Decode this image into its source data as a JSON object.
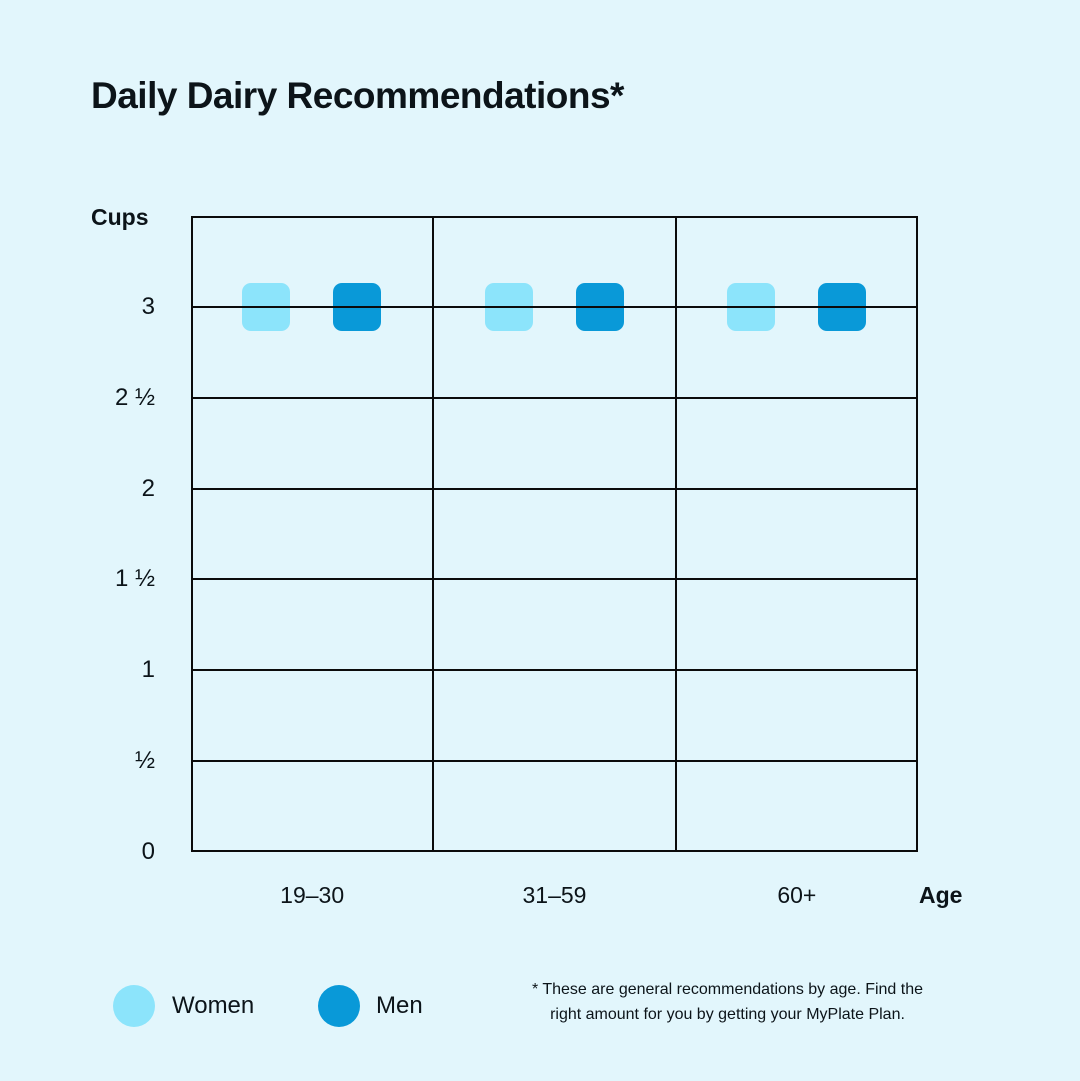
{
  "title": "Daily Dairy Recommendations*",
  "axis": {
    "ylabel": "Cups",
    "xlabel": "Age"
  },
  "chart_data": {
    "type": "scatter",
    "marker_shape": "rounded-square",
    "categories": [
      "19–30",
      "31–59",
      "60+"
    ],
    "series": [
      {
        "name": "Women",
        "values": [
          3,
          3,
          3
        ],
        "color": "#8ce4fb"
      },
      {
        "name": "Men",
        "values": [
          3,
          3,
          3
        ],
        "color": "#0999d8"
      }
    ],
    "title": "Daily Dairy Recommendations*",
    "xlabel": "Age",
    "ylabel": "Cups",
    "ylim": [
      0,
      3.5
    ],
    "ytick_values": [
      0,
      0.5,
      1,
      1.5,
      2,
      2.5,
      3
    ],
    "ytick_labels": [
      "0",
      "½",
      "1",
      "1 ½",
      "2",
      "2 ½",
      "3"
    ],
    "grid": true,
    "legend_position": "bottom-left"
  },
  "legend": {
    "items": [
      {
        "label": "Women",
        "color": "#8ce4fb"
      },
      {
        "label": "Men",
        "color": "#0999d8"
      }
    ]
  },
  "footnote": {
    "line1": "* These are general recommendations by age. Find the",
    "line2": "right amount for you by getting your MyPlate Plan."
  },
  "colors": {
    "background": "#e2f6fc",
    "gridline": "#0b0b0b",
    "text": "#0c1419",
    "women": "#8ce4fb",
    "men": "#0999d8"
  }
}
